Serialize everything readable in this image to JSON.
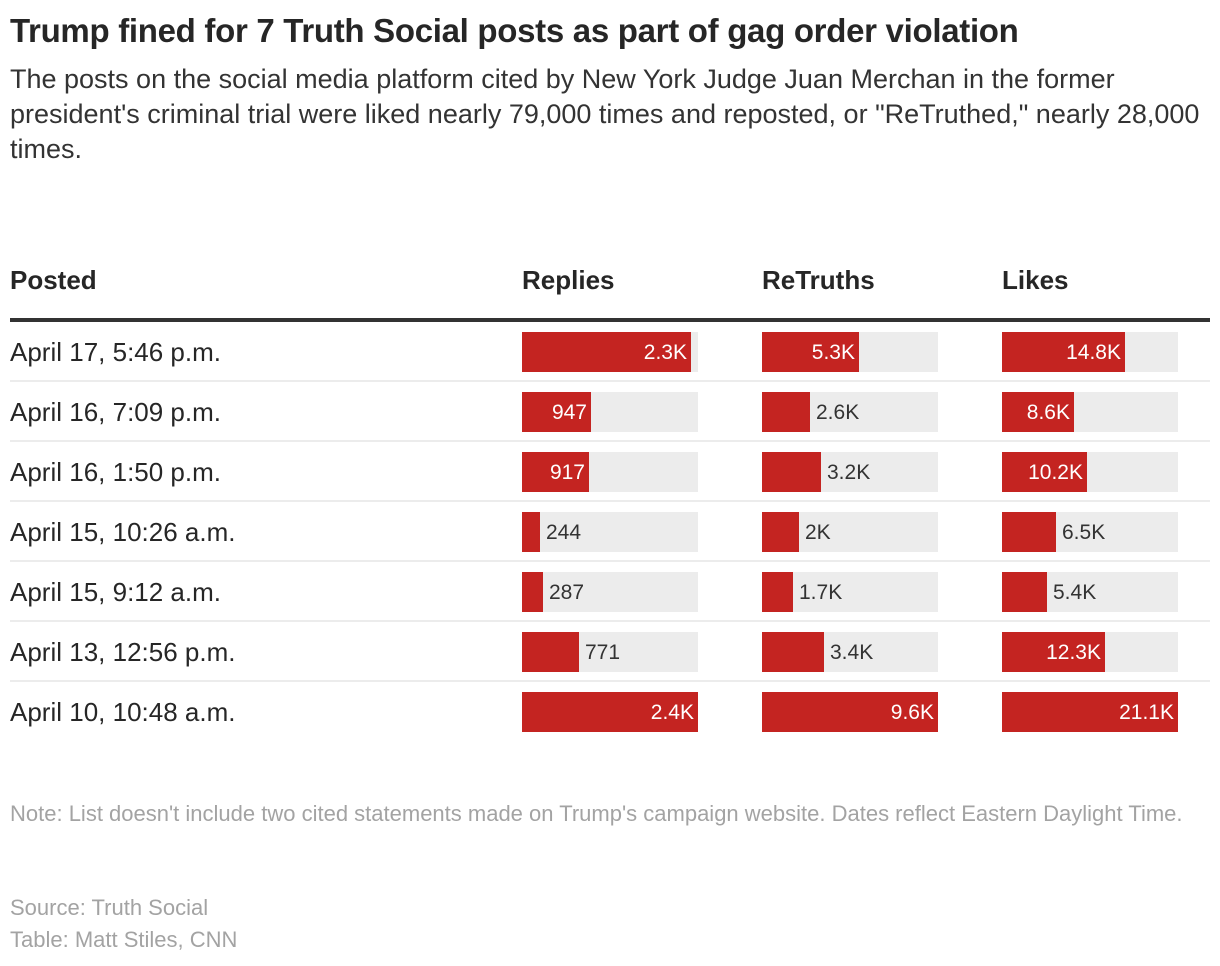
{
  "title": "Trump fined for 7 Truth Social posts as part of gag order violation",
  "subtitle": "The posts on the social media platform cited by New York Judge Juan Merchan in the former president's criminal trial were liked nearly 79,000 times and reposted, or \"ReTruthed,\" nearly 28,000 times.",
  "note": "Note: List doesn't include two cited statements made on Trump's campaign website. Dates reflect Eastern Daylight Time.",
  "source": "Source: Truth Social",
  "credit": "Table: Matt Stiles, CNN",
  "colors": {
    "bar": "#c42421",
    "track": "#ececec"
  },
  "chart_data": {
    "type": "table",
    "columns": [
      "Posted",
      "Replies",
      "ReTruths",
      "Likes"
    ],
    "rows": [
      {
        "posted": "April 17, 5:46 p.m.",
        "values": [
          2300,
          5300,
          14800
        ],
        "labels": [
          "2.3K",
          "5.3K",
          "14.8K"
        ]
      },
      {
        "posted": "April 16, 7:09 p.m.",
        "values": [
          947,
          2600,
          8600
        ],
        "labels": [
          "947",
          "2.6K",
          "8.6K"
        ]
      },
      {
        "posted": "April 16, 1:50 p.m.",
        "values": [
          917,
          3200,
          10200
        ],
        "labels": [
          "917",
          "3.2K",
          "10.2K"
        ]
      },
      {
        "posted": "April 15, 10:26 a.m.",
        "values": [
          244,
          2000,
          6500
        ],
        "labels": [
          "244",
          "2K",
          "6.5K"
        ]
      },
      {
        "posted": "April 15, 9:12 a.m.",
        "values": [
          287,
          1700,
          5400
        ],
        "labels": [
          "287",
          "1.7K",
          "5.4K"
        ]
      },
      {
        "posted": "April 13, 12:56 p.m.",
        "values": [
          771,
          3400,
          12300
        ],
        "labels": [
          "771",
          "3.4K",
          "12.3K"
        ]
      },
      {
        "posted": "April 10, 10:48 a.m.",
        "values": [
          2400,
          9600,
          21100
        ],
        "labels": [
          "2.4K",
          "9.6K",
          "21.1K"
        ]
      }
    ]
  }
}
